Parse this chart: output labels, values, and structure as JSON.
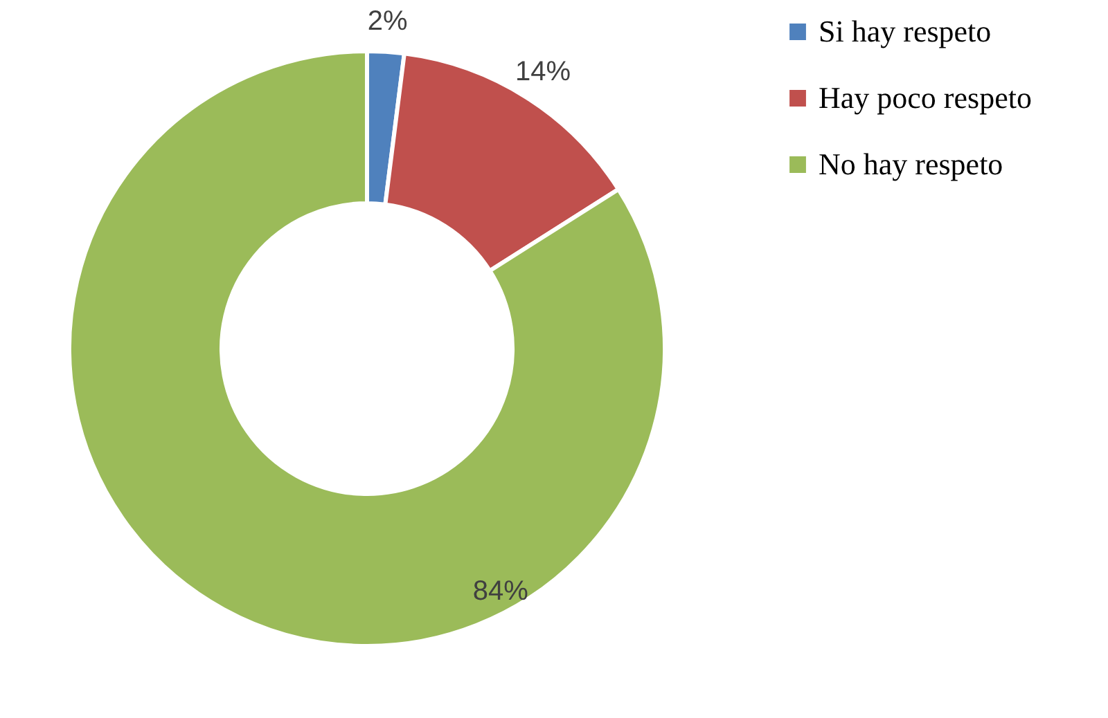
{
  "chart_data": {
    "type": "donut",
    "categories": [
      "Si hay respeto",
      "Hay poco respeto",
      "No hay respeto"
    ],
    "values": [
      2,
      14,
      84
    ],
    "colors": [
      "#4f81bd",
      "#c0504d",
      "#9bbb59"
    ],
    "value_labels": [
      "2%",
      "14%",
      "84%"
    ],
    "legend": "right"
  }
}
